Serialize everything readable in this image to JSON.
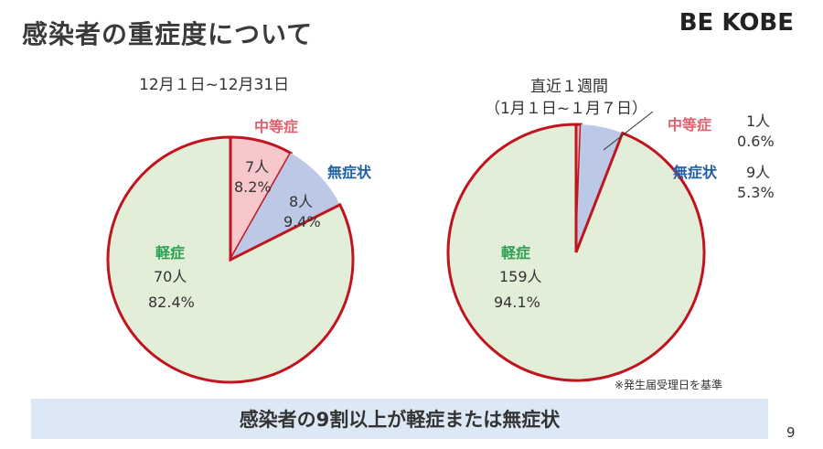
{
  "slide": {
    "title": "感染者の重症度について",
    "logo": "BE KOBE",
    "note": "※発生届受理日を基準",
    "banner": "感染者の9割以上が軽症または無症状",
    "page_number": "9"
  },
  "colors": {
    "mild": "#e2eed8",
    "moderate": "#f7c7cc",
    "asymptomatic": "#bcc9e6",
    "outline": "#c0141e"
  },
  "chart_data": [
    {
      "type": "pie",
      "title": "12月１日~12月31日",
      "slices": [
        {
          "label": "中等症",
          "count_label": "7人",
          "percent_label": "8.2%",
          "value": 8.2
        },
        {
          "label": "無症状",
          "count_label": "8人",
          "percent_label": "9.4%",
          "value": 9.4
        },
        {
          "label": "軽症",
          "count_label": "70人",
          "percent_label": "82.4%",
          "value": 82.4
        }
      ]
    },
    {
      "type": "pie",
      "title": "直近１週間",
      "subtitle": "（1月１日~１月７日）",
      "slices": [
        {
          "label": "中等症",
          "count_label": "1人",
          "percent_label": "0.6%",
          "value": 0.6
        },
        {
          "label": "無症状",
          "count_label": "9人",
          "percent_label": "5.3%",
          "value": 5.3
        },
        {
          "label": "軽症",
          "count_label": "159人",
          "percent_label": "94.1%",
          "value": 94.1
        }
      ]
    }
  ]
}
